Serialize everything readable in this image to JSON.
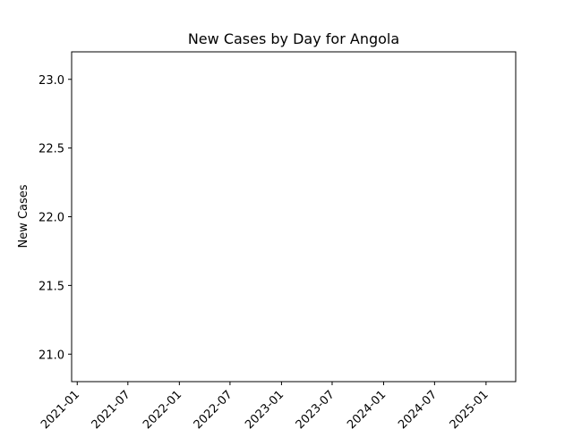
{
  "chart_data": {
    "type": "line",
    "title": "New Cases by Day for Angola",
    "xlabel": "",
    "ylabel": "New Cases",
    "x_ticks": [
      "2021-01",
      "2021-07",
      "2022-01",
      "2022-07",
      "2023-01",
      "2023-07",
      "2024-01",
      "2024-07",
      "2025-01"
    ],
    "y_ticks": [
      "21.0",
      "21.5",
      "22.0",
      "22.5",
      "23.0"
    ],
    "ylim": [
      20.8,
      23.2
    ],
    "xlim": [
      "2020-12-12",
      "2025-04-17"
    ],
    "series": [
      {
        "x": [],
        "y": []
      }
    ],
    "grid": false
  }
}
